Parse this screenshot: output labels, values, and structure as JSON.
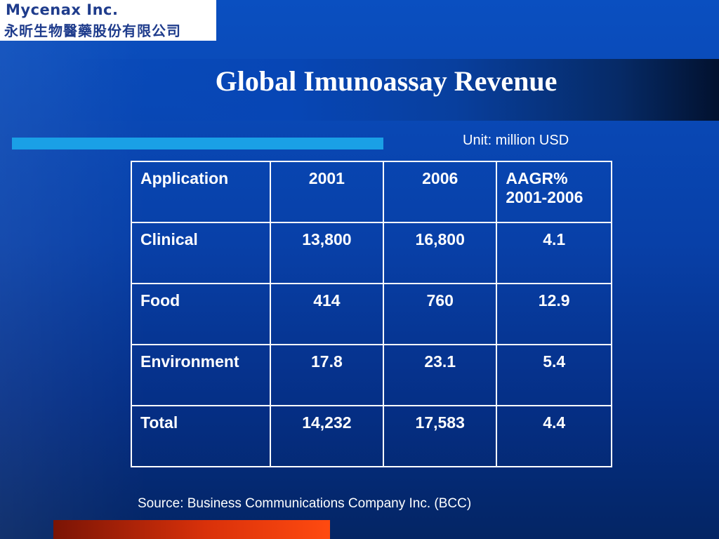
{
  "logo": {
    "line1": "Mycenax Inc.",
    "line2": "永昕生物醫藥股份有限公司"
  },
  "title": "Global Imunoassay Revenue",
  "unit": "Unit: million USD",
  "table": {
    "headers": {
      "application": "Application",
      "y2001": "2001",
      "y2006": "2006",
      "aagr_line1": "AAGR%",
      "aagr_line2": "2001-2006"
    },
    "rows": [
      {
        "application": "Clinical",
        "y2001": "13,800",
        "y2006": "16,800",
        "aagr": "4.1"
      },
      {
        "application": "Food",
        "y2001": "414",
        "y2006": "760",
        "aagr": "12.9"
      },
      {
        "application": "Environment",
        "y2001": "17.8",
        "y2006": "23.1",
        "aagr": "5.4"
      },
      {
        "application": "Total",
        "y2001": "14,232",
        "y2006": "17,583",
        "aagr": "4.4"
      }
    ]
  },
  "source": "Source: Business Communications Company Inc. (BCC)",
  "colors": {
    "background": "#0840a8",
    "accent_bar": "#1aa0e6",
    "footer_bar": "#d9310a",
    "logo_text": "#1f3c8c"
  }
}
